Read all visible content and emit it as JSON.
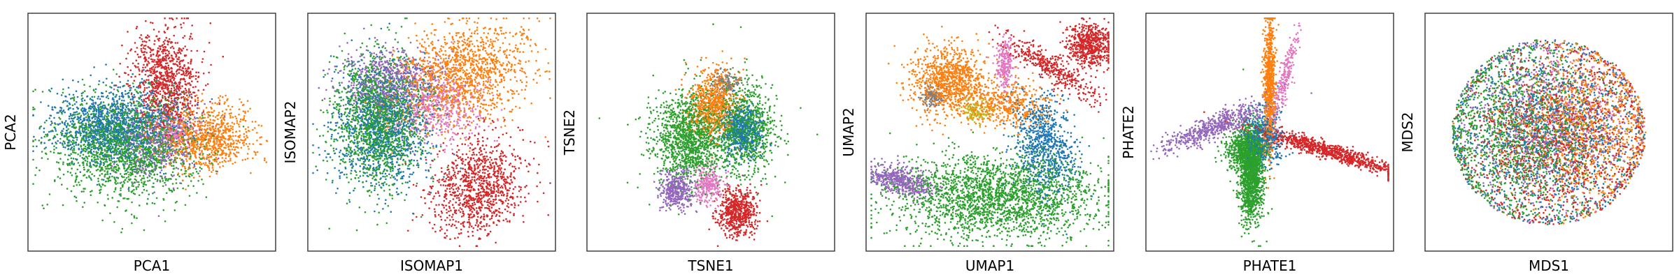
{
  "colors": {
    "blue": "#1f77b4",
    "orange": "#ff7f0e",
    "green": "#2ca02c",
    "red": "#d62728",
    "purple": "#9467bd",
    "pink": "#e377c2",
    "gray": "#7f7f7f",
    "olive": "#bcbd22"
  },
  "chart_data": [
    {
      "type": "scatter",
      "xlabel": "PCA1",
      "ylabel": "PCA2",
      "xlim": [
        -1,
        1
      ],
      "ylim": [
        -1,
        1
      ],
      "grid": false,
      "ticks": false,
      "clusters": [
        {
          "color": "green",
          "cx": -0.22,
          "cy": -0.12,
          "sx": 0.3,
          "sy": 0.22,
          "n": 1800,
          "rot": -0.15
        },
        {
          "color": "blue",
          "cx": -0.3,
          "cy": 0.06,
          "sx": 0.26,
          "sy": 0.16,
          "n": 1300,
          "rot": 0.0
        },
        {
          "color": "purple",
          "cx": 0.05,
          "cy": -0.1,
          "sx": 0.18,
          "sy": 0.16,
          "n": 450,
          "rot": 0.0
        },
        {
          "color": "orange",
          "cx": 0.45,
          "cy": -0.05,
          "sx": 0.2,
          "sy": 0.14,
          "n": 900,
          "rot": 0.0
        },
        {
          "color": "red",
          "cx": 0.12,
          "cy": 0.45,
          "sx": 0.14,
          "sy": 0.22,
          "n": 900,
          "rot": 0.1
        },
        {
          "color": "pink",
          "cx": 0.18,
          "cy": 0.02,
          "sx": 0.08,
          "sy": 0.08,
          "n": 150,
          "rot": 0.0
        }
      ]
    },
    {
      "type": "scatter",
      "xlabel": "ISOMAP1",
      "ylabel": "ISOMAP2",
      "xlim": [
        -1,
        1
      ],
      "ylim": [
        -1,
        1
      ],
      "grid": false,
      "ticks": false,
      "clusters": [
        {
          "color": "purple",
          "cx": -0.35,
          "cy": 0.45,
          "sx": 0.2,
          "sy": 0.14,
          "n": 600,
          "rot": 0.0
        },
        {
          "color": "blue",
          "cx": -0.4,
          "cy": 0.05,
          "sx": 0.2,
          "sy": 0.26,
          "n": 1100,
          "rot": 0.0
        },
        {
          "color": "green",
          "cx": -0.45,
          "cy": 0.12,
          "sx": 0.18,
          "sy": 0.28,
          "n": 1600,
          "rot": 0.0
        },
        {
          "color": "orange",
          "cx": 0.25,
          "cy": 0.5,
          "sx": 0.28,
          "sy": 0.2,
          "n": 1300,
          "rot": 0.35
        },
        {
          "color": "pink",
          "cx": 0.05,
          "cy": 0.2,
          "sx": 0.18,
          "sy": 0.16,
          "n": 500,
          "rot": 0.0
        },
        {
          "color": "red",
          "cx": 0.38,
          "cy": -0.48,
          "sx": 0.18,
          "sy": 0.22,
          "n": 1000,
          "rot": -0.6
        }
      ]
    },
    {
      "type": "scatter",
      "xlabel": "TSNE1",
      "ylabel": "TSNE2",
      "xlim": [
        -1,
        1
      ],
      "ylim": [
        -1,
        1
      ],
      "grid": false,
      "ticks": false,
      "clusters": [
        {
          "color": "green",
          "cx": -0.18,
          "cy": -0.05,
          "sx": 0.15,
          "sy": 0.2,
          "n": 1300,
          "rot": 0.0
        },
        {
          "color": "green",
          "cx": 0.28,
          "cy": 0.02,
          "sx": 0.13,
          "sy": 0.2,
          "n": 900,
          "rot": 0.0
        },
        {
          "color": "orange",
          "cx": 0.02,
          "cy": 0.25,
          "sx": 0.1,
          "sy": 0.15,
          "n": 700,
          "rot": 0.0
        },
        {
          "color": "blue",
          "cx": 0.25,
          "cy": 0.02,
          "sx": 0.08,
          "sy": 0.12,
          "n": 500,
          "rot": 0.0
        },
        {
          "color": "gray",
          "cx": 0.12,
          "cy": 0.42,
          "sx": 0.06,
          "sy": 0.05,
          "n": 150,
          "rot": 0.0
        },
        {
          "color": "purple",
          "cx": -0.28,
          "cy": -0.5,
          "sx": 0.07,
          "sy": 0.09,
          "n": 400,
          "rot": 0.0
        },
        {
          "color": "pink",
          "cx": -0.02,
          "cy": -0.45,
          "sx": 0.06,
          "sy": 0.08,
          "n": 250,
          "rot": 0.0
        },
        {
          "color": "red",
          "cx": 0.22,
          "cy": -0.68,
          "sx": 0.08,
          "sy": 0.1,
          "n": 600,
          "rot": 0.0
        }
      ],
      "outliers": [
        {
          "x": 0.02,
          "y": 0.93,
          "color": "green"
        },
        {
          "x": -0.92,
          "y": 0.12,
          "color": "green"
        },
        {
          "x": 0.64,
          "y": -0.08,
          "color": "green"
        },
        {
          "x": 0.88,
          "y": -0.02,
          "color": "green"
        }
      ]
    },
    {
      "type": "scatter",
      "xlabel": "UMAP1",
      "ylabel": "UMAP2",
      "xlim": [
        -1,
        1
      ],
      "ylim": [
        -1,
        1
      ],
      "grid": false,
      "ticks": false,
      "clusters": [
        {
          "color": "green",
          "cx": 0.05,
          "cy": -0.55,
          "sx": 0.42,
          "sy": 0.18,
          "n": 2300,
          "rot": 0.0
        },
        {
          "color": "blue",
          "cx": 0.45,
          "cy": -0.1,
          "sx": 0.12,
          "sy": 0.22,
          "n": 800,
          "rot": 0.2
        },
        {
          "color": "orange",
          "cx": -0.35,
          "cy": 0.45,
          "sx": 0.15,
          "sy": 0.14,
          "n": 900,
          "rot": 0.0
        },
        {
          "color": "orange",
          "cx": 0.1,
          "cy": 0.25,
          "sx": 0.2,
          "sy": 0.1,
          "n": 500,
          "rot": 0.0
        },
        {
          "color": "gray",
          "cx": -0.48,
          "cy": 0.3,
          "sx": 0.05,
          "sy": 0.05,
          "n": 120,
          "rot": 0.0
        },
        {
          "color": "olive",
          "cx": -0.12,
          "cy": 0.18,
          "sx": 0.06,
          "sy": 0.05,
          "n": 120,
          "rot": 0.0
        },
        {
          "color": "pink",
          "cx": 0.12,
          "cy": 0.58,
          "sx": 0.04,
          "sy": 0.12,
          "n": 250,
          "rot": 0.0
        },
        {
          "color": "red",
          "cx": 0.82,
          "cy": 0.75,
          "sx": 0.1,
          "sy": 0.09,
          "n": 600,
          "rot": 0.0
        },
        {
          "color": "red",
          "cx": 0.5,
          "cy": 0.55,
          "sx": 0.22,
          "sy": 0.05,
          "n": 400,
          "rot": -0.6
        },
        {
          "color": "purple",
          "cx": -0.72,
          "cy": -0.42,
          "sx": 0.14,
          "sy": 0.06,
          "n": 500,
          "rot": -0.3
        }
      ]
    },
    {
      "type": "scatter",
      "xlabel": "PHATE1",
      "ylabel": "PHATE2",
      "xlim": [
        -1,
        1
      ],
      "ylim": [
        -1,
        1
      ],
      "grid": false,
      "ticks": false,
      "clusters": [
        {
          "color": "green",
          "cx": -0.15,
          "cy": -0.35,
          "sx": 0.05,
          "sy": 0.2,
          "n": 1400,
          "rot": 0.0
        },
        {
          "color": "green",
          "cx": -0.2,
          "cy": -0.15,
          "sx": 0.08,
          "sy": 0.08,
          "n": 600,
          "rot": 0.0
        },
        {
          "color": "blue",
          "cx": -0.05,
          "cy": -0.05,
          "sx": 0.08,
          "sy": 0.12,
          "n": 500,
          "rot": 0.0
        },
        {
          "color": "orange",
          "cx": 0.0,
          "cy": 0.4,
          "sx": 0.025,
          "sy": 0.3,
          "n": 800,
          "rot": 0.0
        },
        {
          "color": "pink",
          "cx": 0.12,
          "cy": 0.45,
          "sx": 0.025,
          "sy": 0.2,
          "n": 250,
          "rot": -0.25
        },
        {
          "color": "purple",
          "cx": -0.45,
          "cy": 0.05,
          "sx": 0.24,
          "sy": 0.05,
          "n": 600,
          "rot": 0.4
        },
        {
          "color": "red",
          "cx": 0.45,
          "cy": -0.15,
          "sx": 0.32,
          "sy": 0.035,
          "n": 900,
          "rot": -0.3
        }
      ]
    },
    {
      "type": "scatter",
      "xlabel": "MDS1",
      "ylabel": "MDS2",
      "xlim": [
        -1,
        1
      ],
      "ylim": [
        -1,
        1
      ],
      "grid": false,
      "ticks": false,
      "clusters": [
        {
          "color": "blue",
          "cx": 0.0,
          "cy": 0.0,
          "sx": 0.4,
          "sy": 0.4,
          "n": 1200,
          "rot": 0.0
        },
        {
          "color": "red",
          "cx": 0.05,
          "cy": -0.05,
          "sx": 0.4,
          "sy": 0.4,
          "n": 1200,
          "rot": 0.0
        },
        {
          "color": "purple",
          "cx": -0.05,
          "cy": 0.05,
          "sx": 0.38,
          "sy": 0.38,
          "n": 600,
          "rot": 0.0
        },
        {
          "color": "orange",
          "cx": 0.3,
          "cy": 0.05,
          "sx": 0.32,
          "sy": 0.35,
          "n": 1200,
          "rot": 0.0
        },
        {
          "color": "green",
          "cx": -0.25,
          "cy": 0.0,
          "sx": 0.35,
          "sy": 0.38,
          "n": 1500,
          "rot": 0.0
        },
        {
          "color": "pink",
          "cx": 0.1,
          "cy": 0.15,
          "sx": 0.3,
          "sy": 0.3,
          "n": 300,
          "rot": 0.0
        }
      ],
      "bound_radius": 0.8
    }
  ]
}
